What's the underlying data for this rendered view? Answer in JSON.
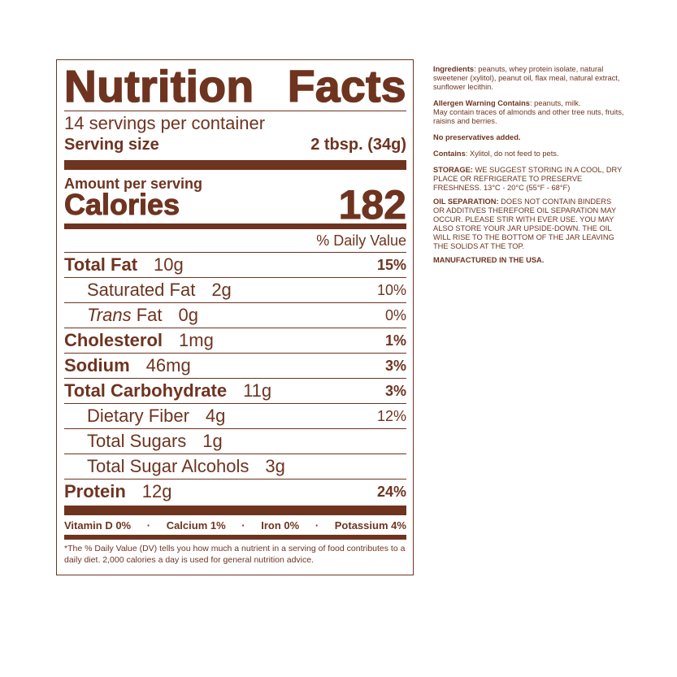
{
  "label": {
    "title_left": "Nutrition",
    "title_right": "Facts",
    "servings": "14 servings per container",
    "serving_size_label": "Serving size",
    "serving_size_value": "2 tbsp. (34g)",
    "amount_per_serving": "Amount per serving",
    "calories_label": "Calories",
    "calories_value": "182",
    "dv_header": "% Daily Value",
    "nutrients": [
      {
        "name": "Total Fat",
        "amount": "10g",
        "dv": "15%",
        "bold": true,
        "indent": 0
      },
      {
        "name": "Saturated Fat",
        "amount": "2g",
        "dv": "10%",
        "bold": false,
        "indent": 1
      },
      {
        "name": "Trans",
        "name_suffix": " Fat",
        "amount": "0g",
        "dv": "0%",
        "bold": false,
        "indent": 1
      },
      {
        "name": "Cholesterol",
        "amount": "1mg",
        "dv": "1%",
        "bold": true,
        "indent": 0
      },
      {
        "name": "Sodium",
        "amount": "46mg",
        "dv": "3%",
        "bold": true,
        "indent": 0
      },
      {
        "name": "Total Carbohydrate",
        "amount": "11g",
        "dv": "3%",
        "bold": true,
        "indent": 0
      },
      {
        "name": "Dietary Fiber",
        "amount": "4g",
        "dv": "12%",
        "bold": false,
        "indent": 1
      },
      {
        "name": "Total Sugars",
        "amount": "1g",
        "dv": "",
        "bold": false,
        "indent": 1
      },
      {
        "name": "Total Sugar Alcohols",
        "amount": "3g",
        "dv": "",
        "bold": false,
        "indent": 1
      },
      {
        "name": "Protein",
        "amount": "12g",
        "dv": "24%",
        "bold": true,
        "indent": 0
      }
    ],
    "vitamins": [
      "Vitamin D 0%",
      "Calcium 1%",
      "Iron  0%",
      "Potassium  4%"
    ],
    "footnote": "*The % Daily Value (DV) tells you how much a nutrient in a serving of food contributes to a daily diet. 2,000 calories a day is used for general nutrition advice."
  },
  "side": {
    "ingredients_label": "Ingredients",
    "ingredients": ": peanuts, whey protein isolate, natural sweetener (xylitol), peanut oil, flax meal, natural extract, sunflower lecithin.",
    "allergen_label": "Allergen Warning Contains",
    "allergen": ": peanuts, milk.",
    "allergen_note": "May contain traces of almonds and other tree nuts, fruits, raisins and berries.",
    "no_preservatives": "No preservatives added.",
    "contains_label": "Contains",
    "contains": ": Xylitol, do not feed to pets.",
    "storage_label": "STORAGE:",
    "storage": " WE SUGGEST STORING IN A COOL, DRY PLACE OR REFRIGERATE TO PRESERVE FRESHNESS. 13°C - 20°C (55°F - 68°F)",
    "oil_label": "OIL SEPARATION:",
    "oil": " DOES NOT CONTAIN BINDERS OR ADDITIVES THEREFORE OIL SEPARATION MAY OCCUR. PLEASE STIR WITH EVER USE. YOU MAY ALSO STORE YOUR JAR UPSIDE-DOWN. THE OIL WILL RISE TO THE BOTTOM OF THE JAR LEAVING THE SOLIDS AT THE TOP.",
    "manufactured": "MANUFACTURED IN THE USA."
  },
  "colors": {
    "brand": "#6e3420"
  }
}
